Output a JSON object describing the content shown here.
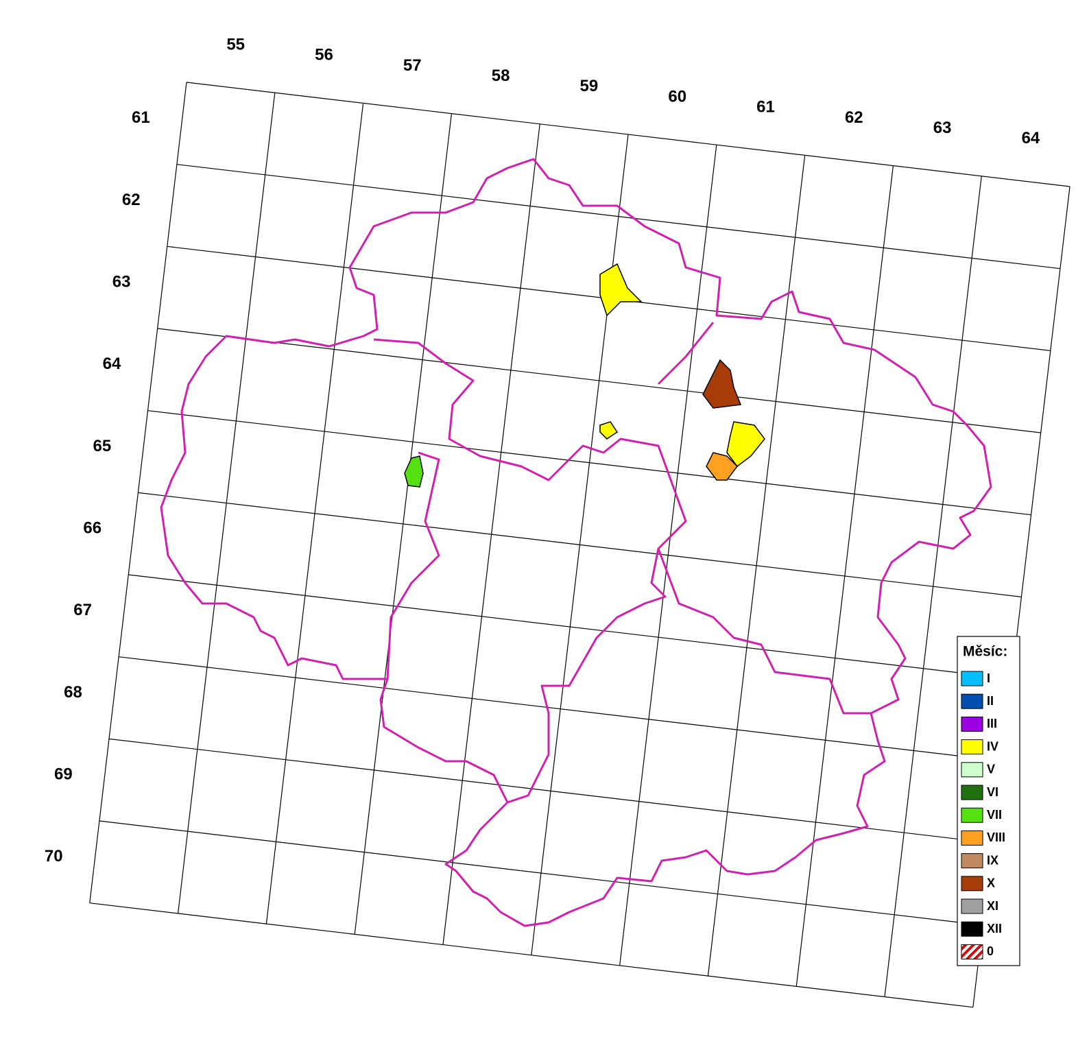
{
  "map": {
    "column_labels": [
      "55",
      "56",
      "57",
      "58",
      "59",
      "60",
      "61",
      "62",
      "63",
      "64"
    ],
    "row_labels": [
      "61",
      "62",
      "63",
      "64",
      "65",
      "66",
      "67",
      "68",
      "69",
      "70"
    ],
    "legend": {
      "title": "Měsíc:",
      "items": [
        {
          "label": "I",
          "color": "#00bfff"
        },
        {
          "label": "II",
          "color": "#0050b0"
        },
        {
          "label": "III",
          "color": "#9b00e0"
        },
        {
          "label": "IV",
          "color": "#ffff00"
        },
        {
          "label": "V",
          "color": "#ccffcc"
        },
        {
          "label": "VI",
          "color": "#207010"
        },
        {
          "label": "VII",
          "color": "#55e010"
        },
        {
          "label": "VIII",
          "color": "#ffa020"
        },
        {
          "label": "IX",
          "color": "#c08860"
        },
        {
          "label": "X",
          "color": "#a83c08"
        },
        {
          "label": "XI",
          "color": "#a0a0a0"
        },
        {
          "label": "XII",
          "color": "#000000"
        },
        {
          "label": "0",
          "color": "hatch"
        }
      ]
    }
  }
}
